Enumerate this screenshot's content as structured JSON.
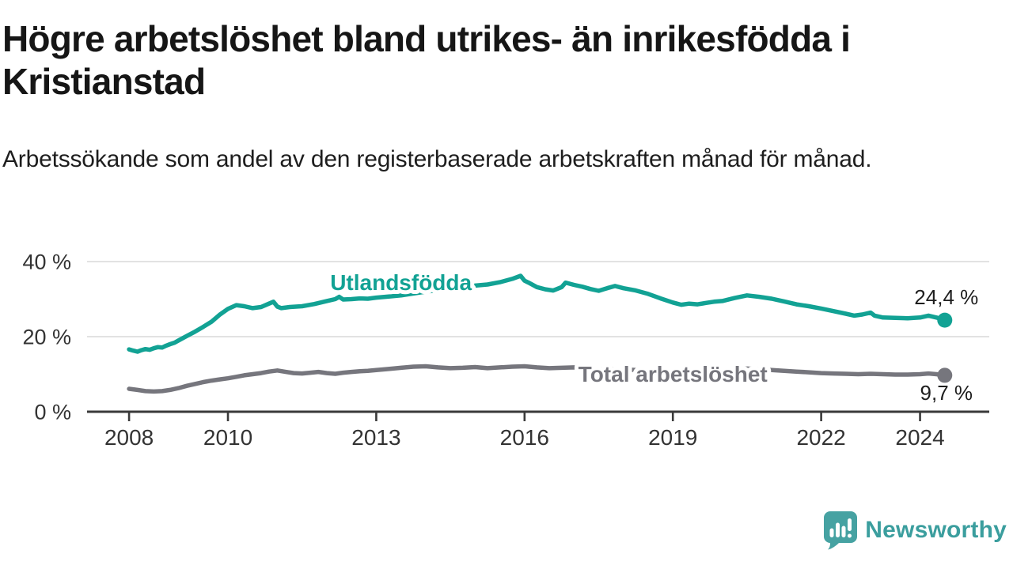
{
  "header": {
    "title": "Högre arbetslöshet bland utrikes- än inrikesfödda i Kristianstad",
    "subtitle": "Arbetssökande som andel av den registerbaserade arbetskraften månad för månad."
  },
  "footer": {
    "brand": "Newsworthy",
    "brand_color": "#3b9e9e",
    "logo_icon": "newsworthy-speech-bubble-bar-chart-icon"
  },
  "chart_data": {
    "type": "line",
    "unit": "%",
    "grid": "horizontal",
    "legend_position": "inline-labels",
    "xlim": [
      2007.15,
      2025.4
    ],
    "ylim": [
      0,
      44
    ],
    "x_ticks": [
      2008,
      2010,
      2013,
      2016,
      2019,
      2022,
      2024
    ],
    "y_ticks": [
      {
        "value": 0,
        "label": "0 %"
      },
      {
        "value": 20,
        "label": "20 %"
      },
      {
        "value": 40,
        "label": "40 %"
      }
    ],
    "series": [
      {
        "name": "Utlandsfödda",
        "color": "#12a294",
        "end_label": "24,4 %",
        "end_value": 24.4,
        "label_anchor": {
          "x": 2013.5,
          "y": 34.3
        },
        "points": [
          [
            2008.0,
            16.6
          ],
          [
            2008.08,
            16.3
          ],
          [
            2008.17,
            16.0
          ],
          [
            2008.25,
            16.4
          ],
          [
            2008.33,
            16.7
          ],
          [
            2008.42,
            16.5
          ],
          [
            2008.5,
            16.9
          ],
          [
            2008.58,
            17.2
          ],
          [
            2008.67,
            17.1
          ],
          [
            2008.75,
            17.6
          ],
          [
            2008.83,
            18.0
          ],
          [
            2008.92,
            18.4
          ],
          [
            2009.0,
            19.0
          ],
          [
            2009.17,
            20.2
          ],
          [
            2009.33,
            21.3
          ],
          [
            2009.5,
            22.6
          ],
          [
            2009.67,
            24.0
          ],
          [
            2009.83,
            25.8
          ],
          [
            2010.0,
            27.4
          ],
          [
            2010.17,
            28.4
          ],
          [
            2010.33,
            28.1
          ],
          [
            2010.5,
            27.6
          ],
          [
            2010.67,
            27.9
          ],
          [
            2010.83,
            28.8
          ],
          [
            2010.92,
            29.3
          ],
          [
            2011.0,
            28.0
          ],
          [
            2011.08,
            27.6
          ],
          [
            2011.25,
            27.9
          ],
          [
            2011.5,
            28.1
          ],
          [
            2011.75,
            28.7
          ],
          [
            2012.0,
            29.5
          ],
          [
            2012.17,
            30.0
          ],
          [
            2012.25,
            30.6
          ],
          [
            2012.33,
            29.9
          ],
          [
            2012.5,
            30.0
          ],
          [
            2012.67,
            30.2
          ],
          [
            2012.83,
            30.1
          ],
          [
            2013.0,
            30.4
          ],
          [
            2013.25,
            30.7
          ],
          [
            2013.5,
            31.0
          ],
          [
            2013.75,
            31.5
          ],
          [
            2014.0,
            32.0
          ],
          [
            2014.25,
            32.4
          ],
          [
            2014.5,
            32.8
          ],
          [
            2014.75,
            33.2
          ],
          [
            2015.0,
            33.6
          ],
          [
            2015.25,
            33.9
          ],
          [
            2015.5,
            34.5
          ],
          [
            2015.75,
            35.4
          ],
          [
            2015.92,
            36.2
          ],
          [
            2016.0,
            34.9
          ],
          [
            2016.08,
            34.4
          ],
          [
            2016.25,
            33.2
          ],
          [
            2016.42,
            32.6
          ],
          [
            2016.58,
            32.3
          ],
          [
            2016.75,
            33.2
          ],
          [
            2016.83,
            34.4
          ],
          [
            2017.0,
            33.8
          ],
          [
            2017.17,
            33.3
          ],
          [
            2017.33,
            32.7
          ],
          [
            2017.5,
            32.2
          ],
          [
            2017.67,
            32.9
          ],
          [
            2017.83,
            33.5
          ],
          [
            2018.0,
            32.9
          ],
          [
            2018.25,
            32.3
          ],
          [
            2018.5,
            31.4
          ],
          [
            2018.75,
            30.2
          ],
          [
            2019.0,
            29.1
          ],
          [
            2019.17,
            28.5
          ],
          [
            2019.33,
            28.8
          ],
          [
            2019.5,
            28.6
          ],
          [
            2019.67,
            29.0
          ],
          [
            2019.83,
            29.3
          ],
          [
            2020.0,
            29.5
          ],
          [
            2020.25,
            30.3
          ],
          [
            2020.5,
            31.0
          ],
          [
            2020.75,
            30.6
          ],
          [
            2021.0,
            30.1
          ],
          [
            2021.25,
            29.4
          ],
          [
            2021.5,
            28.6
          ],
          [
            2021.75,
            28.1
          ],
          [
            2022.0,
            27.5
          ],
          [
            2022.25,
            26.8
          ],
          [
            2022.5,
            26.1
          ],
          [
            2022.67,
            25.6
          ],
          [
            2022.83,
            25.9
          ],
          [
            2023.0,
            26.4
          ],
          [
            2023.08,
            25.6
          ],
          [
            2023.25,
            25.1
          ],
          [
            2023.5,
            25.0
          ],
          [
            2023.75,
            24.9
          ],
          [
            2024.0,
            25.1
          ],
          [
            2024.17,
            25.6
          ],
          [
            2024.33,
            25.1
          ],
          [
            2024.5,
            24.4
          ]
        ]
      },
      {
        "name": "Total arbetslöshet",
        "color": "#76767d",
        "end_label": "9,7 %",
        "end_value": 9.7,
        "label_anchor": {
          "x": 2019.0,
          "y": 9.9
        },
        "points": [
          [
            2008.0,
            6.1
          ],
          [
            2008.17,
            5.8
          ],
          [
            2008.33,
            5.5
          ],
          [
            2008.5,
            5.4
          ],
          [
            2008.67,
            5.5
          ],
          [
            2008.83,
            5.8
          ],
          [
            2009.0,
            6.3
          ],
          [
            2009.17,
            6.9
          ],
          [
            2009.33,
            7.4
          ],
          [
            2009.5,
            7.9
          ],
          [
            2009.67,
            8.3
          ],
          [
            2009.83,
            8.6
          ],
          [
            2010.0,
            8.9
          ],
          [
            2010.17,
            9.3
          ],
          [
            2010.33,
            9.7
          ],
          [
            2010.5,
            10.0
          ],
          [
            2010.67,
            10.3
          ],
          [
            2010.83,
            10.7
          ],
          [
            2011.0,
            11.0
          ],
          [
            2011.17,
            10.6
          ],
          [
            2011.33,
            10.3
          ],
          [
            2011.5,
            10.2
          ],
          [
            2011.67,
            10.4
          ],
          [
            2011.83,
            10.6
          ],
          [
            2012.0,
            10.3
          ],
          [
            2012.17,
            10.1
          ],
          [
            2012.33,
            10.4
          ],
          [
            2012.5,
            10.6
          ],
          [
            2012.67,
            10.8
          ],
          [
            2012.83,
            10.9
          ],
          [
            2013.0,
            11.1
          ],
          [
            2013.25,
            11.4
          ],
          [
            2013.5,
            11.7
          ],
          [
            2013.75,
            12.0
          ],
          [
            2014.0,
            12.1
          ],
          [
            2014.25,
            11.8
          ],
          [
            2014.5,
            11.6
          ],
          [
            2014.75,
            11.7
          ],
          [
            2015.0,
            11.9
          ],
          [
            2015.25,
            11.6
          ],
          [
            2015.5,
            11.8
          ],
          [
            2015.75,
            12.0
          ],
          [
            2016.0,
            12.1
          ],
          [
            2016.25,
            11.8
          ],
          [
            2016.5,
            11.6
          ],
          [
            2016.75,
            11.7
          ],
          [
            2017.0,
            11.8
          ],
          [
            2017.25,
            11.5
          ],
          [
            2017.5,
            11.3
          ],
          [
            2017.75,
            11.4
          ],
          [
            2018.0,
            11.3
          ],
          [
            2018.25,
            11.1
          ],
          [
            2018.5,
            10.9
          ],
          [
            2018.75,
            10.8
          ],
          [
            2019.0,
            10.7
          ],
          [
            2019.25,
            10.5
          ],
          [
            2019.5,
            10.7
          ],
          [
            2019.75,
            10.8
          ],
          [
            2020.0,
            10.9
          ],
          [
            2020.25,
            11.2
          ],
          [
            2020.5,
            11.5
          ],
          [
            2020.75,
            11.3
          ],
          [
            2021.0,
            11.1
          ],
          [
            2021.25,
            10.9
          ],
          [
            2021.5,
            10.7
          ],
          [
            2021.75,
            10.5
          ],
          [
            2022.0,
            10.3
          ],
          [
            2022.25,
            10.2
          ],
          [
            2022.5,
            10.1
          ],
          [
            2022.75,
            10.0
          ],
          [
            2023.0,
            10.1
          ],
          [
            2023.25,
            10.0
          ],
          [
            2023.5,
            9.9
          ],
          [
            2023.75,
            9.9
          ],
          [
            2024.0,
            10.0
          ],
          [
            2024.17,
            10.2
          ],
          [
            2024.33,
            10.0
          ],
          [
            2024.5,
            9.7
          ]
        ]
      }
    ]
  }
}
